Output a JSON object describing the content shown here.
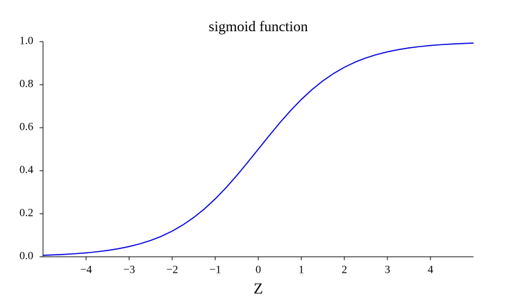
{
  "chart_data": {
    "type": "line",
    "title": "sigmoid function",
    "x_label": "Z",
    "x": [
      -5,
      -4.75,
      -4.5,
      -4.25,
      -4,
      -3.75,
      -3.5,
      -3.25,
      -3,
      -2.75,
      -2.5,
      -2.25,
      -2,
      -1.75,
      -1.5,
      -1.25,
      -1,
      -0.75,
      -0.5,
      -0.25,
      0,
      0.25,
      0.5,
      0.75,
      1,
      1.25,
      1.5,
      1.75,
      2,
      2.25,
      2.5,
      2.75,
      3,
      3.25,
      3.5,
      3.75,
      4,
      4.25,
      4.5,
      4.75,
      5
    ],
    "series": [
      {
        "color": "#0000dd",
        "values": [
          0.0067,
          0.0086,
          0.011,
          0.0141,
          0.018,
          0.023,
          0.0293,
          0.0374,
          0.0474,
          0.0601,
          0.0759,
          0.0953,
          0.1192,
          0.148,
          0.1824,
          0.2227,
          0.2689,
          0.3208,
          0.3775,
          0.4378,
          0.5,
          0.5622,
          0.6225,
          0.6792,
          0.7311,
          0.7773,
          0.8176,
          0.852,
          0.8808,
          0.9047,
          0.9241,
          0.9399,
          0.9526,
          0.9626,
          0.9707,
          0.977,
          0.982,
          0.9859,
          0.989,
          0.9914,
          0.9933
        ]
      }
    ],
    "xlim": [
      -5,
      5
    ],
    "ylim": [
      0,
      1
    ],
    "xticks": [
      {
        "value": -4,
        "label": "−4"
      },
      {
        "value": -3,
        "label": "−3"
      },
      {
        "value": -2,
        "label": "−2"
      },
      {
        "value": -1,
        "label": "−1"
      },
      0,
      1,
      2,
      3,
      4
    ],
    "yticks": [
      {
        "value": 0,
        "label": "0.0"
      },
      0.2,
      0.4,
      0.6,
      0.8,
      {
        "value": 1,
        "label": "1.0"
      }
    ],
    "grid": false
  }
}
